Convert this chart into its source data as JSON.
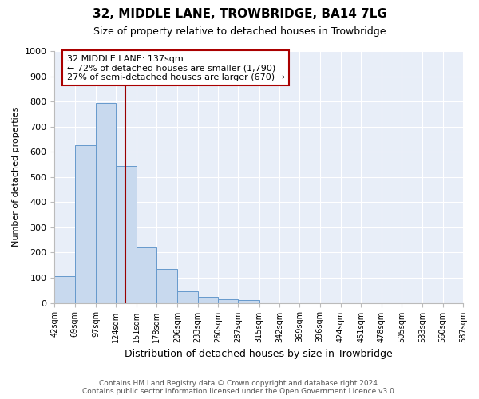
{
  "title": "32, MIDDLE LANE, TROWBRIDGE, BA14 7LG",
  "subtitle": "Size of property relative to detached houses in Trowbridge",
  "xlabel": "Distribution of detached houses by size in Trowbridge",
  "ylabel": "Number of detached properties",
  "bar_color": "#c8d9ee",
  "bar_edge_color": "#6699cc",
  "background_color": "#e8eef8",
  "grid_color": "#ffffff",
  "fig_background": "#ffffff",
  "annotation_box_color": "#aa0000",
  "property_line_color": "#990000",
  "property_sqm": 137,
  "annotation_line1": "32 MIDDLE LANE: 137sqm",
  "annotation_line2": "← 72% of detached houses are smaller (1,790)",
  "annotation_line3": "27% of semi-detached houses are larger (670) →",
  "footer_line1": "Contains HM Land Registry data © Crown copyright and database right 2024.",
  "footer_line2": "Contains public sector information licensed under the Open Government Licence v3.0.",
  "bin_edges": [
    42,
    69,
    97,
    124,
    151,
    178,
    206,
    233,
    260,
    287,
    315,
    342,
    369,
    396,
    424,
    451,
    478,
    505,
    533,
    560,
    587
  ],
  "bar_heights": [
    105,
    625,
    795,
    545,
    220,
    135,
    45,
    25,
    15,
    10,
    0,
    0,
    0,
    0,
    0,
    0,
    0,
    0,
    0,
    0
  ],
  "ylim": [
    0,
    1000
  ],
  "yticks": [
    0,
    100,
    200,
    300,
    400,
    500,
    600,
    700,
    800,
    900,
    1000
  ]
}
